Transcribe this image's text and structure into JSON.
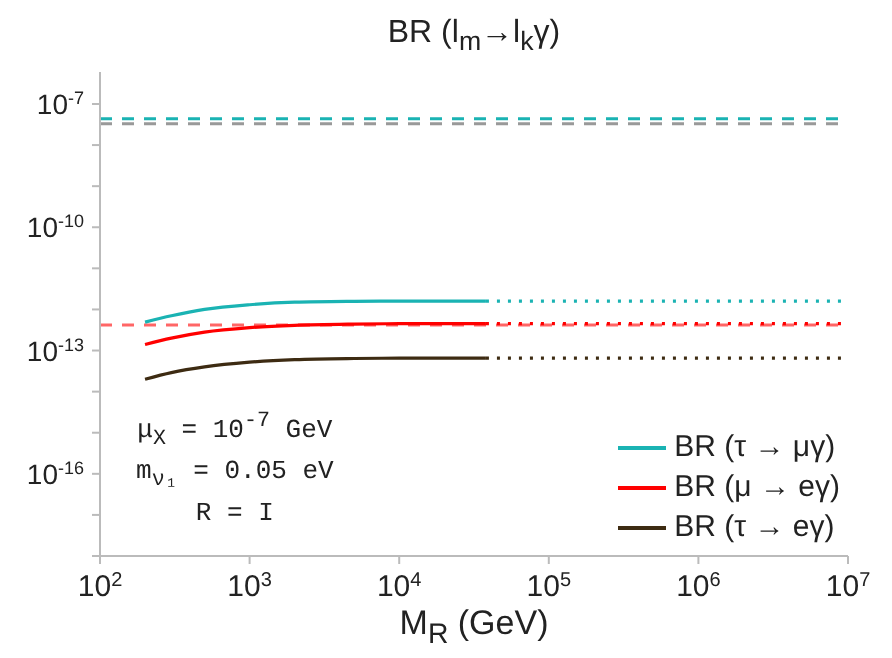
{
  "chart_data": {
    "type": "line",
    "title": "BR (l$_{m}$→l$_{k}$γ)",
    "xlabel": "M$_{R}$ (GeV)",
    "log": "xy",
    "xlim": [
      100,
      10000000
    ],
    "xticks": [
      {
        "value": 100,
        "label": "10$^{2}$"
      },
      {
        "value": 1000,
        "label": "10$^{3}$"
      },
      {
        "value": 10000,
        "label": "10$^{4}$"
      },
      {
        "value": 100000,
        "label": "10$^{5}$"
      },
      {
        "value": 1000000,
        "label": "10$^{6}$"
      },
      {
        "value": 10000000,
        "label": "10$^{7}$"
      }
    ],
    "ylim": [
      1e-18,
      6e-07
    ],
    "yticks": [
      {
        "value": 1e-18,
        "label": null
      },
      {
        "value": 1e-17,
        "label": null
      },
      {
        "value": 1e-16,
        "label": "10$^{-16}$"
      },
      {
        "value": 1e-15,
        "label": null
      },
      {
        "value": 1e-14,
        "label": null
      },
      {
        "value": 1e-13,
        "label": "10$^{-13}$"
      },
      {
        "value": 1e-12,
        "label": null
      },
      {
        "value": 1e-11,
        "label": null
      },
      {
        "value": 1e-10,
        "label": "10$^{-10}$"
      },
      {
        "value": 1e-09,
        "label": null
      },
      {
        "value": 1e-08,
        "label": null
      },
      {
        "value": 1e-07,
        "label": "10$^{-7}$"
      }
    ],
    "legend": "bottom right",
    "marker": "none",
    "series": [
      {
        "name": "BR (τ → μγ)",
        "color": "#1ab3b3",
        "line_style": "solid",
        "x": [
          200,
          300,
          500,
          1000,
          2000,
          5000,
          10000,
          38000
        ],
        "values": [
          4.9e-13,
          7e-13,
          1e-12,
          1.3e-12,
          1.5e-12,
          1.58e-12,
          1.6e-12,
          1.6e-12
        ]
      },
      {
        "name": "BR (μ → eγ)",
        "color": "#ff0000",
        "line_style": "solid",
        "x": [
          200,
          300,
          500,
          1000,
          2000,
          5000,
          10000,
          38000
        ],
        "values": [
          1.4e-13,
          2e-13,
          2.8e-13,
          3.6e-13,
          4.1e-13,
          4.4e-13,
          4.5e-13,
          4.5e-13
        ]
      },
      {
        "name": "BR (τ → eγ)",
        "color": "#3d2b12",
        "line_style": "solid",
        "x": [
          200,
          300,
          500,
          1000,
          2000,
          5000,
          10000,
          38000
        ],
        "values": [
          2e-14,
          2.9e-14,
          4e-14,
          5.2e-14,
          6e-14,
          6.4e-14,
          6.5e-14,
          6.5e-14
        ]
      },
      {
        "color": "#1ab3b3",
        "line_style": "dotted",
        "x": [
          38000,
          10000000
        ],
        "values": [
          1.6e-12,
          1.6e-12
        ]
      },
      {
        "color": "#ff0000",
        "line_style": "dotted",
        "x": [
          38000,
          10000000
        ],
        "values": [
          4.5e-13,
          4.5e-13
        ]
      },
      {
        "color": "#3d2b12",
        "line_style": "dotted",
        "x": [
          38000,
          10000000
        ],
        "values": [
          6.5e-14,
          6.5e-14
        ]
      }
    ],
    "ref_lines": [
      {
        "axis": "y",
        "value": 4.4e-08,
        "color": "#1ab3b3",
        "line_style": "dashed"
      },
      {
        "axis": "y",
        "value": 3.3e-08,
        "color": "#999999",
        "line_style": "dashed"
      },
      {
        "axis": "y",
        "value": 4.2e-13,
        "color": "#ff6666",
        "line_style": "dashed"
      }
    ],
    "annotations": [
      "μ$_{X}$ = 10$^{-7}$ GeV",
      "m$_{ν₁}$ = 0.05 eV",
      "R = I"
    ]
  }
}
